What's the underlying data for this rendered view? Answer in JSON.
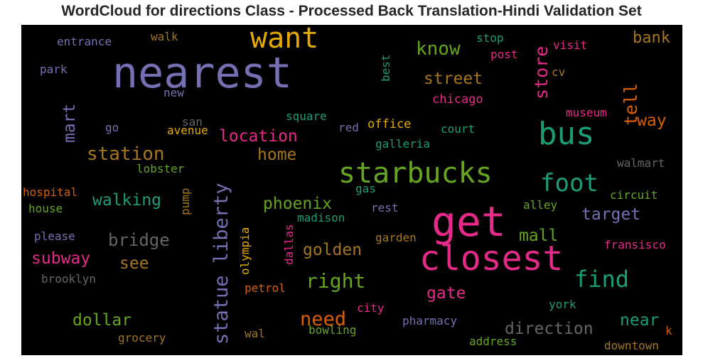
{
  "title": "WordCloud for directions Class - Processed Back Translation-Hindi Validation Set",
  "chart_data": {
    "type": "wordcloud",
    "title": "WordCloud for directions Class - Processed Back Translation-Hindi Validation Set",
    "background": "#000000",
    "colormap": "Dark2",
    "words": [
      {
        "text": "nearest",
        "weight": 60,
        "color": "#7570b3",
        "orientation": "horizontal"
      },
      {
        "text": "get",
        "weight": 58,
        "color": "#e7298a",
        "orientation": "horizontal"
      },
      {
        "text": "closest",
        "weight": 48,
        "color": "#e7298a",
        "orientation": "horizontal"
      },
      {
        "text": "bus",
        "weight": 44,
        "color": "#1b9e77",
        "orientation": "horizontal"
      },
      {
        "text": "starbucks",
        "weight": 40,
        "color": "#66a61e",
        "orientation": "horizontal"
      },
      {
        "text": "want",
        "weight": 40,
        "color": "#e6ab02",
        "orientation": "horizontal"
      },
      {
        "text": "foot",
        "weight": 34,
        "color": "#1b9e77",
        "orientation": "horizontal"
      },
      {
        "text": "find",
        "weight": 32,
        "color": "#1b9e77",
        "orientation": "horizontal"
      },
      {
        "text": "statue liberty",
        "weight": 27,
        "color": "#7570b3",
        "orientation": "vertical"
      },
      {
        "text": "right",
        "weight": 28,
        "color": "#66a61e",
        "orientation": "horizontal"
      },
      {
        "text": "need",
        "weight": 27,
        "color": "#d95f02",
        "orientation": "horizontal"
      },
      {
        "text": "know",
        "weight": 26,
        "color": "#66a61e",
        "orientation": "horizontal"
      },
      {
        "text": "station",
        "weight": 26,
        "color": "#a6761d",
        "orientation": "horizontal"
      },
      {
        "text": "store",
        "weight": 25,
        "color": "#e7298a",
        "orientation": "vertical"
      },
      {
        "text": "tell",
        "weight": 25,
        "color": "#d95f02",
        "orientation": "vertical"
      },
      {
        "text": "bridge",
        "weight": 24,
        "color": "#666666",
        "orientation": "horizontal"
      },
      {
        "text": "direction",
        "weight": 23,
        "color": "#666666",
        "orientation": "horizontal"
      },
      {
        "text": "location",
        "weight": 23,
        "color": "#e7298a",
        "orientation": "horizontal"
      },
      {
        "text": "walking",
        "weight": 23,
        "color": "#1b9e77",
        "orientation": "horizontal"
      },
      {
        "text": "mart",
        "weight": 23,
        "color": "#7570b3",
        "orientation": "vertical"
      },
      {
        "text": "golden",
        "weight": 23,
        "color": "#a6761d",
        "orientation": "horizontal"
      },
      {
        "text": "subway",
        "weight": 23,
        "color": "#e7298a",
        "orientation": "horizontal"
      },
      {
        "text": "dollar",
        "weight": 23,
        "color": "#66a61e",
        "orientation": "horizontal"
      },
      {
        "text": "near",
        "weight": 23,
        "color": "#1b9e77",
        "orientation": "horizontal"
      },
      {
        "text": "street",
        "weight": 23,
        "color": "#a6761d",
        "orientation": "horizontal"
      },
      {
        "text": "way",
        "weight": 23,
        "color": "#d95f02",
        "orientation": "horizontal"
      },
      {
        "text": "target",
        "weight": 23,
        "color": "#7570b3",
        "orientation": "horizontal"
      },
      {
        "text": "gate",
        "weight": 23,
        "color": "#e7298a",
        "orientation": "horizontal"
      },
      {
        "text": "mall",
        "weight": 23,
        "color": "#66a61e",
        "orientation": "horizontal"
      },
      {
        "text": "phoenix",
        "weight": 23,
        "color": "#66a61e",
        "orientation": "horizontal"
      },
      {
        "text": "home",
        "weight": 23,
        "color": "#a6761d",
        "orientation": "horizontal"
      },
      {
        "text": "see",
        "weight": 23,
        "color": "#a6761d",
        "orientation": "horizontal"
      },
      {
        "text": "bank",
        "weight": 22,
        "color": "#a6761d",
        "orientation": "horizontal"
      },
      {
        "text": "office",
        "weight": 17,
        "color": "#e6ab02",
        "orientation": "horizontal"
      },
      {
        "text": "chicago",
        "weight": 17,
        "color": "#e7298a",
        "orientation": "horizontal"
      },
      {
        "text": "entrance",
        "weight": 16,
        "color": "#7570b3",
        "orientation": "horizontal"
      },
      {
        "text": "walk",
        "weight": 16,
        "color": "#a6761d",
        "orientation": "horizontal"
      },
      {
        "text": "stop",
        "weight": 16,
        "color": "#1b9e77",
        "orientation": "horizontal"
      },
      {
        "text": "visit",
        "weight": 16,
        "color": "#e7298a",
        "orientation": "horizontal"
      },
      {
        "text": "post",
        "weight": 16,
        "color": "#e7298a",
        "orientation": "horizontal"
      },
      {
        "text": "cv",
        "weight": 16,
        "color": "#a6761d",
        "orientation": "horizontal"
      },
      {
        "text": "best",
        "weight": 16,
        "color": "#1b9e77",
        "orientation": "vertical"
      },
      {
        "text": "park",
        "weight": 16,
        "color": "#7570b3",
        "orientation": "horizontal"
      },
      {
        "text": "new",
        "weight": 16,
        "color": "#7570b3",
        "orientation": "horizontal"
      },
      {
        "text": "san",
        "weight": 16,
        "color": "#666666",
        "orientation": "horizontal"
      },
      {
        "text": "square",
        "weight": 16,
        "color": "#1b9e77",
        "orientation": "horizontal"
      },
      {
        "text": "museum",
        "weight": 16,
        "color": "#e7298a",
        "orientation": "horizontal"
      },
      {
        "text": "go",
        "weight": 16,
        "color": "#7570b3",
        "orientation": "horizontal"
      },
      {
        "text": "avenue",
        "weight": 16,
        "color": "#e6ab02",
        "orientation": "horizontal"
      },
      {
        "text": "red",
        "weight": 16,
        "color": "#7570b3",
        "orientation": "horizontal"
      },
      {
        "text": "court",
        "weight": 16,
        "color": "#1b9e77",
        "orientation": "horizontal"
      },
      {
        "text": "galleria",
        "weight": 16,
        "color": "#1b9e77",
        "orientation": "horizontal"
      },
      {
        "text": "walmart",
        "weight": 16,
        "color": "#666666",
        "orientation": "horizontal"
      },
      {
        "text": "lobster",
        "weight": 16,
        "color": "#66a61e",
        "orientation": "horizontal"
      },
      {
        "text": "gas",
        "weight": 16,
        "color": "#1b9e77",
        "orientation": "horizontal"
      },
      {
        "text": "circuit",
        "weight": 16,
        "color": "#66a61e",
        "orientation": "horizontal"
      },
      {
        "text": "hospital",
        "weight": 16,
        "color": "#d95f02",
        "orientation": "horizontal"
      },
      {
        "text": "pump",
        "weight": 16,
        "color": "#a6761d",
        "orientation": "vertical"
      },
      {
        "text": "house",
        "weight": 16,
        "color": "#66a61e",
        "orientation": "horizontal"
      },
      {
        "text": "rest",
        "weight": 16,
        "color": "#7570b3",
        "orientation": "horizontal"
      },
      {
        "text": "alley",
        "weight": 16,
        "color": "#66a61e",
        "orientation": "horizontal"
      },
      {
        "text": "madison",
        "weight": 16,
        "color": "#1b9e77",
        "orientation": "horizontal"
      },
      {
        "text": "please",
        "weight": 16,
        "color": "#7570b3",
        "orientation": "horizontal"
      },
      {
        "text": "olympia",
        "weight": 16,
        "color": "#e6ab02",
        "orientation": "vertical"
      },
      {
        "text": "dallas",
        "weight": 16,
        "color": "#e7298a",
        "orientation": "vertical"
      },
      {
        "text": "garden",
        "weight": 16,
        "color": "#a6761d",
        "orientation": "horizontal"
      },
      {
        "text": "fransisco",
        "weight": 16,
        "color": "#e7298a",
        "orientation": "horizontal"
      },
      {
        "text": "brooklyn",
        "weight": 16,
        "color": "#666666",
        "orientation": "horizontal"
      },
      {
        "text": "petrol",
        "weight": 16,
        "color": "#d95f02",
        "orientation": "horizontal"
      },
      {
        "text": "city",
        "weight": 16,
        "color": "#e7298a",
        "orientation": "horizontal"
      },
      {
        "text": "pharmacy",
        "weight": 16,
        "color": "#7570b3",
        "orientation": "horizontal"
      },
      {
        "text": "york",
        "weight": 16,
        "color": "#1b9e77",
        "orientation": "horizontal"
      },
      {
        "text": "wal",
        "weight": 16,
        "color": "#a6761d",
        "orientation": "horizontal"
      },
      {
        "text": "bowling",
        "weight": 16,
        "color": "#66a61e",
        "orientation": "horizontal"
      },
      {
        "text": "grocery",
        "weight": 16,
        "color": "#a6761d",
        "orientation": "horizontal"
      },
      {
        "text": "address",
        "weight": 16,
        "color": "#66a61e",
        "orientation": "horizontal"
      },
      {
        "text": "k",
        "weight": 16,
        "color": "#d95f02",
        "orientation": "horizontal"
      },
      {
        "text": "downtown",
        "weight": 16,
        "color": "#a6761d",
        "orientation": "horizontal"
      }
    ]
  }
}
